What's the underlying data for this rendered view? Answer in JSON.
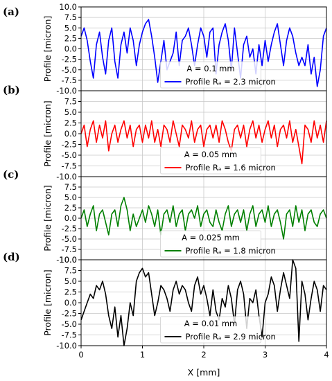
{
  "figure": {
    "xlabel": "X [mm]",
    "x_ticks": [
      "0",
      "1",
      "2",
      "3",
      "4"
    ]
  },
  "chart_data": [
    {
      "type": "line",
      "panel_label": "(a)",
      "ylabel": "Profile [micron]",
      "xlim": [
        0,
        4
      ],
      "ylim": [
        -10,
        10
      ],
      "y_ticks": [
        "10.0",
        "7.5",
        "5.0",
        "2.5",
        "0.0",
        "-2.5",
        "-5.0",
        "-7.5",
        "-10.0"
      ],
      "grid": true,
      "legend_position": "lower-center",
      "legend_title": "A = 0.1 mm",
      "series": [
        {
          "name": "Profile Rₐ = 2.3 micron",
          "color": "#0000ff",
          "x": [
            0,
            0.05,
            0.1,
            0.15,
            0.2,
            0.25,
            0.3,
            0.35,
            0.4,
            0.45,
            0.5,
            0.55,
            0.6,
            0.65,
            0.7,
            0.75,
            0.8,
            0.85,
            0.9,
            0.95,
            1.0,
            1.05,
            1.1,
            1.15,
            1.2,
            1.25,
            1.3,
            1.35,
            1.4,
            1.45,
            1.5,
            1.55,
            1.6,
            1.65,
            1.7,
            1.75,
            1.8,
            1.85,
            1.9,
            1.95,
            2.0,
            2.05,
            2.1,
            2.15,
            2.2,
            2.25,
            2.3,
            2.35,
            2.4,
            2.45,
            2.5,
            2.55,
            2.6,
            2.65,
            2.7,
            2.75,
            2.8,
            2.85,
            2.9,
            2.95,
            3.0,
            3.05,
            3.1,
            3.15,
            3.2,
            3.25,
            3.3,
            3.35,
            3.4,
            3.45,
            3.5,
            3.55,
            3.6,
            3.65,
            3.7,
            3.75,
            3.8,
            3.85,
            3.9,
            3.95,
            4.0
          ],
          "y": [
            3,
            5,
            2,
            -3,
            -7,
            1,
            4,
            -2,
            -6,
            2,
            5,
            -3,
            -7,
            1,
            4,
            -1,
            5,
            2,
            -4,
            1,
            4,
            6,
            7,
            3,
            -2,
            -8,
            -3,
            2,
            -5,
            -3,
            -1,
            4,
            -4,
            2,
            3,
            5,
            1,
            -4,
            1,
            5,
            3,
            -2,
            4,
            5,
            -6,
            1,
            4,
            6,
            2,
            -5,
            5,
            -1,
            -7,
            1,
            3,
            -2,
            0,
            -6,
            1,
            -4,
            2,
            -3,
            1,
            4,
            6,
            1,
            -4,
            2,
            5,
            3,
            -1,
            -4,
            -2,
            -4,
            1,
            -6,
            -2,
            -9,
            -5,
            3,
            5
          ]
        }
      ]
    },
    {
      "type": "line",
      "panel_label": "(b)",
      "ylabel": "Profile [micron]",
      "xlim": [
        0,
        4
      ],
      "ylim": [
        -10,
        10
      ],
      "y_ticks": [
        "7.5",
        "5.0",
        "2.5",
        "0.0",
        "-2.5",
        "-5.0",
        "-7.5",
        "-10.0"
      ],
      "grid": true,
      "legend_position": "lower-center",
      "legend_title": "A = 0.05 mm",
      "series": [
        {
          "name": "Profile Rₐ = 1.6 micron",
          "color": "#ff0000",
          "x": [
            0,
            0.05,
            0.1,
            0.15,
            0.2,
            0.25,
            0.3,
            0.35,
            0.4,
            0.45,
            0.5,
            0.55,
            0.6,
            0.65,
            0.7,
            0.75,
            0.8,
            0.85,
            0.9,
            0.95,
            1.0,
            1.05,
            1.1,
            1.15,
            1.2,
            1.25,
            1.3,
            1.35,
            1.4,
            1.45,
            1.5,
            1.55,
            1.6,
            1.65,
            1.7,
            1.75,
            1.8,
            1.85,
            1.9,
            1.95,
            2.0,
            2.05,
            2.1,
            2.15,
            2.2,
            2.25,
            2.3,
            2.35,
            2.4,
            2.45,
            2.5,
            2.55,
            2.6,
            2.65,
            2.7,
            2.75,
            2.8,
            2.85,
            2.9,
            2.95,
            3.0,
            3.05,
            3.1,
            3.15,
            3.2,
            3.25,
            3.3,
            3.35,
            3.4,
            3.45,
            3.5,
            3.55,
            3.6,
            3.65,
            3.7,
            3.75,
            3.8,
            3.85,
            3.9,
            3.95,
            4.0
          ],
          "y": [
            0,
            2,
            -3,
            1,
            3,
            -2,
            2,
            -1,
            3,
            -4,
            0,
            2,
            -2,
            1,
            3,
            -1,
            2,
            -3,
            1,
            2,
            -2,
            2,
            -1,
            3,
            -2,
            1,
            -3,
            2,
            1,
            -2,
            3,
            0,
            -3,
            2,
            1,
            -1,
            3,
            -2,
            1,
            2,
            -3,
            1,
            2,
            -1,
            2,
            -2,
            3,
            1,
            -2,
            -4,
            1,
            2,
            -1,
            2,
            -3,
            1,
            3,
            -1,
            2,
            -2,
            1,
            3,
            -1,
            2,
            -3,
            1,
            2,
            -1,
            3,
            -2,
            1,
            -3,
            -7,
            2,
            1,
            -2,
            3,
            -1,
            2,
            -2,
            3
          ]
        }
      ]
    },
    {
      "type": "line",
      "panel_label": "(c)",
      "ylabel": "Profile [micron]",
      "xlim": [
        0,
        4
      ],
      "ylim": [
        -10,
        10
      ],
      "y_ticks": [
        "7.5",
        "5.0",
        "2.5",
        "0.0",
        "-2.5",
        "-5.0",
        "-7.5",
        "-10.0"
      ],
      "grid": true,
      "legend_position": "lower-center",
      "legend_title": "A = 0.025 mm",
      "series": [
        {
          "name": "Profile Rₐ = 1.8 micron",
          "color": "#008000",
          "x": [
            0,
            0.05,
            0.1,
            0.15,
            0.2,
            0.25,
            0.3,
            0.35,
            0.4,
            0.45,
            0.5,
            0.55,
            0.6,
            0.65,
            0.7,
            0.75,
            0.8,
            0.85,
            0.9,
            0.95,
            1.0,
            1.05,
            1.1,
            1.15,
            1.2,
            1.25,
            1.3,
            1.35,
            1.4,
            1.45,
            1.5,
            1.55,
            1.6,
            1.65,
            1.7,
            1.75,
            1.8,
            1.85,
            1.9,
            1.95,
            2.0,
            2.05,
            2.1,
            2.15,
            2.2,
            2.25,
            2.3,
            2.35,
            2.4,
            2.45,
            2.5,
            2.55,
            2.6,
            2.65,
            2.7,
            2.75,
            2.8,
            2.85,
            2.9,
            2.95,
            3.0,
            3.05,
            3.1,
            3.15,
            3.2,
            3.25,
            3.3,
            3.35,
            3.4,
            3.45,
            3.5,
            3.55,
            3.6,
            3.65,
            3.7,
            3.75,
            3.8,
            3.85,
            3.9,
            3.95,
            4.0
          ],
          "y": [
            0,
            2,
            -2,
            1,
            3,
            -3,
            1,
            2,
            -1,
            -4,
            1,
            2,
            -2,
            3,
            5,
            2,
            -3,
            1,
            -2,
            0,
            2,
            -1,
            3,
            1,
            -2,
            2,
            -4,
            1,
            2,
            -1,
            3,
            -2,
            1,
            2,
            -3,
            1,
            2,
            0,
            3,
            -2,
            1,
            2,
            -1,
            -2,
            2,
            -1,
            -3,
            1,
            3,
            -2,
            1,
            2,
            -1,
            2,
            -3,
            1,
            3,
            -2,
            1,
            2,
            -1,
            3,
            -2,
            1,
            2,
            -1,
            -5,
            1,
            2,
            -2,
            3,
            -1,
            2,
            -3,
            1,
            2,
            -1,
            -2,
            1,
            2,
            0
          ]
        }
      ]
    },
    {
      "type": "line",
      "panel_label": "(d)",
      "ylabel": "Profile [micron]",
      "xlim": [
        0,
        4
      ],
      "ylim": [
        -10,
        10
      ],
      "y_ticks": [
        "10.0",
        "7.5",
        "5.0",
        "2.5",
        "0.0",
        "-2.5",
        "-5.0",
        "-7.5",
        "-10.0"
      ],
      "grid": true,
      "legend_position": "lower-center",
      "legend_title": "A = 0.01 mm",
      "series": [
        {
          "name": "Profile Rₐ = 2.9 micron",
          "color": "#000000",
          "x": [
            0,
            0.05,
            0.1,
            0.15,
            0.2,
            0.25,
            0.3,
            0.35,
            0.4,
            0.45,
            0.5,
            0.55,
            0.6,
            0.65,
            0.7,
            0.75,
            0.8,
            0.85,
            0.9,
            0.95,
            1.0,
            1.05,
            1.1,
            1.15,
            1.2,
            1.25,
            1.3,
            1.35,
            1.4,
            1.45,
            1.5,
            1.55,
            1.6,
            1.65,
            1.7,
            1.75,
            1.8,
            1.85,
            1.9,
            1.95,
            2.0,
            2.05,
            2.1,
            2.15,
            2.2,
            2.25,
            2.3,
            2.35,
            2.4,
            2.45,
            2.5,
            2.55,
            2.6,
            2.65,
            2.7,
            2.75,
            2.8,
            2.85,
            2.9,
            2.95,
            3.0,
            3.05,
            3.1,
            3.15,
            3.2,
            3.25,
            3.3,
            3.35,
            3.4,
            3.45,
            3.5,
            3.55,
            3.6,
            3.65,
            3.7,
            3.75,
            3.8,
            3.85,
            3.9,
            3.95,
            4.0
          ],
          "y": [
            -4,
            -2,
            0,
            2,
            1,
            4,
            3,
            5,
            2,
            -3,
            -6,
            -1,
            -8,
            -3,
            -10,
            -6,
            0,
            -3,
            5,
            7,
            8,
            6,
            7,
            2,
            -3,
            0,
            4,
            3,
            1,
            -2,
            3,
            5,
            2,
            4,
            3,
            0,
            -2,
            4,
            6,
            2,
            4,
            1,
            -3,
            3,
            -2,
            -4,
            1,
            -1,
            4,
            1,
            -5,
            3,
            5,
            2,
            -6,
            1,
            0,
            3,
            -3,
            -8,
            0,
            2,
            6,
            4,
            -2,
            3,
            7,
            4,
            1,
            10,
            8,
            -9,
            5,
            2,
            -4,
            1,
            5,
            3,
            -2,
            4,
            3
          ]
        }
      ]
    }
  ]
}
